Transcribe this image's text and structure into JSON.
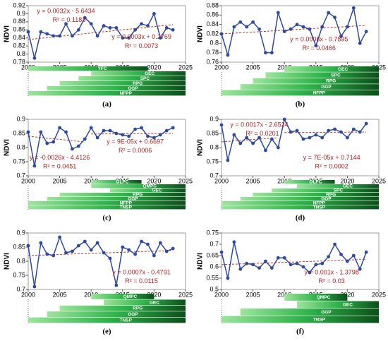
{
  "chart_data": [
    {
      "type": "line",
      "caption": "(a)",
      "ylabel": "NDVI",
      "color": "#2e4a9e",
      "trend_color": "#c0392b",
      "x": [
        2000,
        2001,
        2002,
        2003,
        2004,
        2005,
        2006,
        2007,
        2008,
        2009,
        2010,
        2011,
        2012,
        2013,
        2014,
        2015,
        2016,
        2017,
        2018,
        2019,
        2020,
        2021,
        2022,
        2023
      ],
      "values": [
        0.855,
        0.79,
        0.855,
        0.85,
        0.845,
        0.845,
        0.875,
        0.845,
        0.86,
        0.89,
        0.875,
        0.845,
        0.87,
        0.865,
        0.865,
        0.84,
        0.84,
        0.86,
        0.875,
        0.87,
        0.9,
        0.84,
        0.865,
        0.86
      ],
      "xlim": [
        2000,
        2025
      ],
      "xticks": [
        2000,
        2005,
        2010,
        2015,
        2020,
        2025
      ],
      "ylim": [
        0.78,
        0.92
      ],
      "yticks": [
        0.78,
        0.8,
        0.82,
        0.84,
        0.86,
        0.88,
        0.9,
        0.92
      ],
      "trends": [
        {
          "x": [
            2000,
            2023
          ],
          "values": [
            0.836,
            0.873
          ]
        }
      ],
      "annotations": [
        "y = 0.0032x - 5.6434",
        "R² = 0.1183",
        "y = 0.0003x + 0.2769",
        "R² = 0.0073"
      ],
      "policies": [
        {
          "name": "YFC",
          "start": 2000,
          "end": 2019
        },
        {
          "name": "GEC",
          "start": 2010,
          "end": 2025
        },
        {
          "name": "SPC",
          "start": 2008,
          "end": 2025
        },
        {
          "name": "RPG",
          "start": 2005,
          "end": 2025
        },
        {
          "name": "GGP",
          "start": 2003,
          "end": 2025
        },
        {
          "name": "NFPP",
          "start": 2000,
          "end": 2025
        }
      ]
    },
    {
      "type": "line",
      "caption": "(b)",
      "ylabel": "NDVI",
      "color": "#2e4a9e",
      "trend_color": "#c0392b",
      "x": [
        2000,
        2001,
        2002,
        2003,
        2004,
        2005,
        2006,
        2007,
        2008,
        2009,
        2010,
        2011,
        2012,
        2013,
        2014,
        2015,
        2016,
        2017,
        2018,
        2019,
        2020,
        2021,
        2022,
        2023
      ],
      "values": [
        0.82,
        0.775,
        0.835,
        0.845,
        0.835,
        0.845,
        0.83,
        0.78,
        0.78,
        0.865,
        0.825,
        0.83,
        0.84,
        0.835,
        0.83,
        0.795,
        0.835,
        0.865,
        0.855,
        0.815,
        0.835,
        0.875,
        0.8,
        0.825
      ],
      "xlim": [
        2000,
        2025
      ],
      "xticks": [
        2000,
        2005,
        2010,
        2015,
        2020,
        2025
      ],
      "ylim": [
        0.76,
        0.88
      ],
      "yticks": [
        0.76,
        0.78,
        0.8,
        0.82,
        0.84,
        0.86,
        0.88
      ],
      "trends": [
        {
          "x": [
            2000,
            2023
          ],
          "values": [
            0.82,
            0.838
          ]
        }
      ],
      "annotations": [
        "y = 0.0008x - 0.7895",
        "R² = 0.0466"
      ],
      "policies": [
        {
          "name": "GEC",
          "start": 2010,
          "end": 2025
        },
        {
          "name": "SPC",
          "start": 2007,
          "end": 2025
        },
        {
          "name": "RPG",
          "start": 2005,
          "end": 2025
        },
        {
          "name": "GGP",
          "start": 2003,
          "end": 2025
        },
        {
          "name": "NFPP",
          "start": 2000,
          "end": 2025
        }
      ]
    },
    {
      "type": "line",
      "caption": "(c)",
      "ylabel": "NDVI",
      "color": "#2e4a9e",
      "trend_color": "#c0392b",
      "x": [
        2000,
        2001,
        2002,
        2003,
        2004,
        2005,
        2006,
        2007,
        2008,
        2009,
        2010,
        2011,
        2012,
        2013,
        2014,
        2015,
        2016,
        2017,
        2018,
        2019,
        2020,
        2021,
        2022,
        2023
      ],
      "values": [
        0.855,
        0.735,
        0.855,
        0.815,
        0.82,
        0.87,
        0.855,
        0.795,
        0.805,
        0.83,
        0.87,
        0.835,
        0.86,
        0.86,
        0.85,
        0.845,
        0.84,
        0.865,
        0.87,
        0.84,
        0.835,
        0.845,
        0.86,
        0.87
      ],
      "xlim": [
        2000,
        2025
      ],
      "xticks": [
        2000,
        2005,
        2010,
        2015,
        2020,
        2025
      ],
      "ylim": [
        0.7,
        0.9
      ],
      "yticks": [
        0.7,
        0.75,
        0.8,
        0.85,
        0.9
      ],
      "trends": [
        {
          "x": [
            2000,
            2009
          ],
          "values": [
            0.84,
            0.82
          ]
        },
        {
          "x": [
            2010,
            2023
          ],
          "values": [
            0.848,
            0.85
          ]
        }
      ],
      "annotations": [
        "y = -0.0026x - 4.4126",
        "R² = 0.0451",
        "y = 9E-05x + 0.6697",
        "R² = 0.0006"
      ],
      "policies": [
        {
          "name": "OLPC",
          "start": 2010,
          "end": 2018
        },
        {
          "name": "QMPC",
          "start": 2010,
          "end": 2025
        },
        {
          "name": "GEC",
          "start": 2013,
          "end": 2025
        },
        {
          "name": "RPG",
          "start": 2005,
          "end": 2025
        },
        {
          "name": "GGP",
          "start": 2003,
          "end": 2025
        },
        {
          "name": "NFPP",
          "start": 2000,
          "end": 2025
        },
        {
          "name": "TNSP",
          "start": 2000,
          "end": 2025
        }
      ]
    },
    {
      "type": "line",
      "caption": "(d)",
      "ylabel": "NDVI",
      "color": "#2e4a9e",
      "trend_color": "#c0392b",
      "x": [
        2000,
        2001,
        2002,
        2003,
        2004,
        2005,
        2006,
        2007,
        2008,
        2009,
        2010,
        2011,
        2012,
        2013,
        2014,
        2015,
        2016,
        2017,
        2018,
        2019,
        2020,
        2021,
        2022,
        2023
      ],
      "values": [
        0.88,
        0.755,
        0.845,
        0.815,
        0.835,
        0.815,
        0.835,
        0.79,
        0.83,
        0.8,
        0.9,
        0.855,
        0.86,
        0.83,
        0.835,
        0.845,
        0.835,
        0.86,
        0.865,
        0.855,
        0.835,
        0.865,
        0.855,
        0.885
      ],
      "xlim": [
        2000,
        2025
      ],
      "xticks": [
        2000,
        2005,
        2010,
        2015,
        2020,
        2025
      ],
      "ylim": [
        0.7,
        0.9
      ],
      "yticks": [
        0.7,
        0.75,
        0.8,
        0.85,
        0.9
      ],
      "trends": [
        {
          "x": [
            2000,
            2009
          ],
          "values": [
            0.82,
            0.835
          ]
        },
        {
          "x": [
            2010,
            2023
          ],
          "values": [
            0.853,
            0.855
          ]
        }
      ],
      "annotations": [
        "y = 0.0017x - 2.6524",
        "R² = 0.0201",
        "y = 7E-05x + 0.7144",
        "R² = 0.0002"
      ],
      "policies": [
        {
          "name": "OLPC",
          "start": 2010,
          "end": 2018
        },
        {
          "name": "GEC",
          "start": 2012,
          "end": 2025
        },
        {
          "name": "SPC",
          "start": 2008,
          "end": 2025
        },
        {
          "name": "RPG",
          "start": 2005,
          "end": 2025
        },
        {
          "name": "GGP",
          "start": 2003,
          "end": 2025
        },
        {
          "name": "NFPP",
          "start": 2000,
          "end": 2025
        },
        {
          "name": "TNSP",
          "start": 2000,
          "end": 2025
        }
      ]
    },
    {
      "type": "line",
      "caption": "(e)",
      "ylabel": "NDVI",
      "color": "#2e4a9e",
      "trend_color": "#c0392b",
      "x": [
        2000,
        2001,
        2002,
        2003,
        2004,
        2005,
        2006,
        2007,
        2008,
        2009,
        2010,
        2011,
        2012,
        2013,
        2014,
        2015,
        2016,
        2017,
        2018,
        2019,
        2020,
        2021,
        2022,
        2023
      ],
      "values": [
        0.855,
        0.71,
        0.865,
        0.825,
        0.82,
        0.885,
        0.83,
        0.835,
        0.855,
        0.87,
        0.84,
        0.865,
        0.83,
        0.81,
        0.715,
        0.85,
        0.84,
        0.825,
        0.87,
        0.86,
        0.82,
        0.865,
        0.835,
        0.845
      ],
      "xlim": [
        2000,
        2025
      ],
      "xticks": [
        2000,
        2005,
        2010,
        2015,
        2020,
        2025
      ],
      "ylim": [
        0.7,
        0.9
      ],
      "yticks": [
        0.7,
        0.75,
        0.8,
        0.85,
        0.9
      ],
      "trends": [
        {
          "x": [
            2000,
            2023
          ],
          "values": [
            0.82,
            0.838
          ]
        }
      ],
      "annotations": [
        "y = 0.0007x - 0.4791",
        "R² = 0.0115"
      ],
      "policies": [
        {
          "name": "QMPC",
          "start": 2010,
          "end": 2020
        },
        {
          "name": "GEC",
          "start": 2012,
          "end": 2025
        },
        {
          "name": "RPG",
          "start": 2005,
          "end": 2025
        },
        {
          "name": "GGP",
          "start": 2003,
          "end": 2025
        },
        {
          "name": "TNSP",
          "start": 2000,
          "end": 2025
        }
      ]
    },
    {
      "type": "line",
      "caption": "(f)",
      "ylabel": "NDVI",
      "color": "#2e4a9e",
      "trend_color": "#c0392b",
      "x": [
        2000,
        2001,
        2002,
        2003,
        2004,
        2005,
        2006,
        2007,
        2008,
        2009,
        2010,
        2011,
        2012,
        2013,
        2014,
        2015,
        2016,
        2017,
        2018,
        2019,
        2020,
        2021,
        2022,
        2023
      ],
      "values": [
        0.665,
        0.55,
        0.71,
        0.59,
        0.615,
        0.61,
        0.595,
        0.625,
        0.595,
        0.64,
        0.64,
        0.61,
        0.615,
        0.6,
        0.575,
        0.61,
        0.615,
        0.645,
        0.7,
        0.655,
        0.625,
        0.65,
        0.59,
        0.665
      ],
      "xlim": [
        2000,
        2025
      ],
      "xticks": [
        2000,
        2005,
        2010,
        2015,
        2020,
        2025
      ],
      "ylim": [
        0.5,
        0.75
      ],
      "yticks": [
        0.5,
        0.55,
        0.6,
        0.65,
        0.7,
        0.75
      ],
      "trends": [
        {
          "x": [
            2000,
            2023
          ],
          "values": [
            0.61,
            0.633
          ]
        }
      ],
      "annotations": [
        "y = 0.001x - 1.3798",
        "R² = 0.03"
      ],
      "policies": [
        {
          "name": "QMPC",
          "start": 2010,
          "end": 2020
        },
        {
          "name": "GEC",
          "start": 2012,
          "end": 2025
        },
        {
          "name": "GGP",
          "start": 2003,
          "end": 2025
        },
        {
          "name": "TNSP",
          "start": 2000,
          "end": 2025
        }
      ]
    }
  ]
}
